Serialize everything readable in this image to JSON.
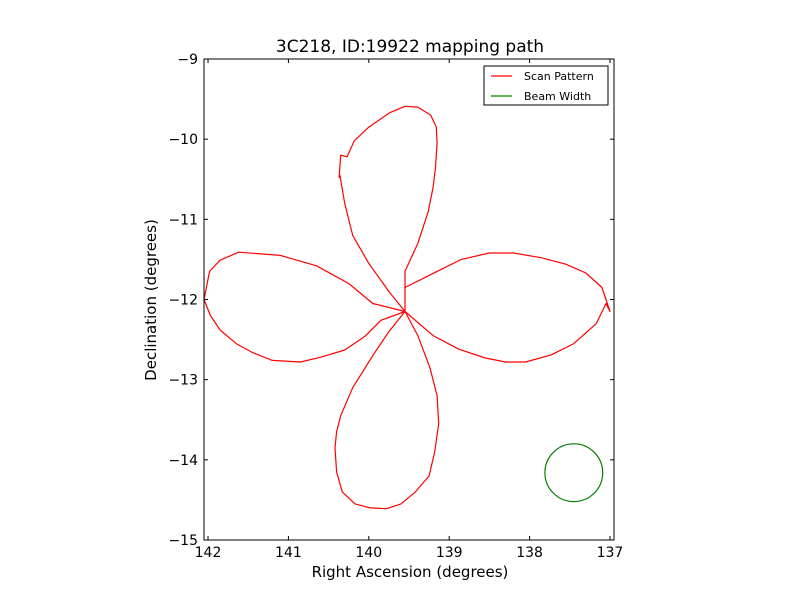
{
  "chart_data": {
    "type": "line",
    "title": "3C218, ID:19922 mapping path",
    "xlabel": "Right Ascension (degrees)",
    "ylabel": "Declination (degrees)",
    "xlim": [
      142.05,
      136.95
    ],
    "ylim": [
      -15,
      -9
    ],
    "x_inverted": true,
    "xticks": [
      142,
      141,
      140,
      139,
      138,
      137
    ],
    "xtick_labels": [
      "142",
      "141",
      "140",
      "139",
      "138",
      "137"
    ],
    "yticks": [
      -9,
      -10,
      -11,
      -12,
      -13,
      -14,
      -15
    ],
    "ytick_labels": [
      "−9",
      "−10",
      "−11",
      "−12",
      "−13",
      "−14",
      "−15"
    ],
    "grid": false,
    "legend_position": "top-right",
    "series": [
      {
        "name": "Scan Pattern",
        "color": "#ff0000",
        "x": [
          139.55,
          139.75,
          140.0,
          140.2,
          140.3,
          140.36,
          140.37,
          140.35,
          140.27,
          140.18,
          140.0,
          139.74,
          139.55,
          139.39,
          139.23,
          139.16,
          139.15,
          139.17,
          139.2,
          139.26,
          139.39,
          139.55,
          139.55,
          139.2,
          138.88,
          138.55,
          138.3,
          138.05,
          137.73,
          137.45,
          137.17,
          137.05,
          137.0,
          137.1,
          137.3,
          137.55,
          137.85,
          138.2,
          138.5,
          138.85,
          139.17,
          139.55,
          139.55,
          139.39,
          139.24,
          139.15,
          139.13,
          139.18,
          139.25,
          139.42,
          139.6,
          139.78,
          139.98,
          140.17,
          140.33,
          140.4,
          140.42,
          140.4,
          140.35,
          140.2,
          139.95,
          139.75,
          139.55,
          139.55,
          139.95,
          140.25,
          140.65,
          141.1,
          141.62,
          141.85,
          141.98,
          142.05,
          141.97,
          141.85,
          141.65,
          141.45,
          141.2,
          140.85,
          140.6,
          140.3,
          140.05,
          139.85,
          139.55
        ],
        "y": [
          -12.15,
          -11.9,
          -11.55,
          -11.2,
          -10.8,
          -10.45,
          -10.48,
          -10.2,
          -10.22,
          -10.02,
          -9.85,
          -9.67,
          -9.59,
          -9.6,
          -9.7,
          -9.85,
          -10.05,
          -10.35,
          -10.6,
          -10.9,
          -11.3,
          -11.65,
          -12.15,
          -12.45,
          -12.62,
          -12.73,
          -12.78,
          -12.78,
          -12.69,
          -12.55,
          -12.3,
          -12.05,
          -12.15,
          -11.85,
          -11.67,
          -11.56,
          -11.48,
          -11.42,
          -11.42,
          -11.5,
          -11.66,
          -11.85,
          -12.15,
          -12.45,
          -12.85,
          -13.2,
          -13.55,
          -13.9,
          -14.2,
          -14.4,
          -14.55,
          -14.61,
          -14.6,
          -14.55,
          -14.4,
          -14.15,
          -13.85,
          -13.65,
          -13.45,
          -13.1,
          -12.7,
          -12.4,
          -12.15,
          -12.15,
          -12.05,
          -11.8,
          -11.58,
          -11.45,
          -11.41,
          -11.51,
          -11.65,
          -12.0,
          -12.2,
          -12.38,
          -12.55,
          -12.66,
          -12.76,
          -12.78,
          -12.72,
          -12.63,
          -12.46,
          -12.26,
          -12.15
        ]
      },
      {
        "name": "Beam Width",
        "color": "#008000",
        "center": [
          137.45,
          -14.16
        ],
        "radius_deg": 0.36
      }
    ]
  }
}
